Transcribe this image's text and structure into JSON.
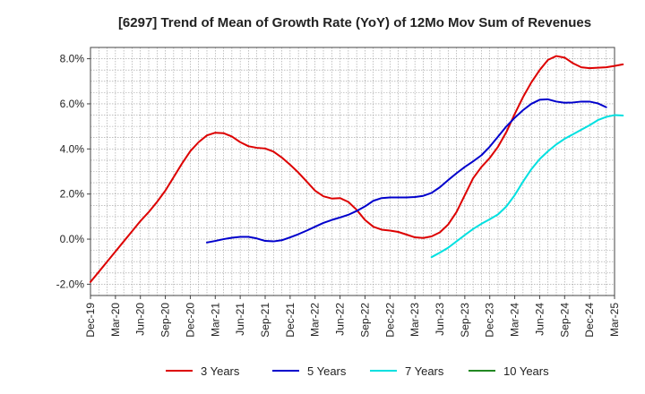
{
  "chart_data": {
    "type": "line",
    "title": "[6297]  Trend of Mean of Growth Rate (YoY) of 12Mo Mov Sum of Revenues",
    "xlabel": "",
    "ylabel": "",
    "ylim": [
      -2.5,
      8.5
    ],
    "y_ticks": [
      -2.0,
      0.0,
      2.0,
      4.0,
      6.0,
      8.0
    ],
    "y_tick_labels": [
      "-2.0%",
      "0.0%",
      "2.0%",
      "4.0%",
      "6.0%",
      "8.0%"
    ],
    "x_tick_labels": [
      "Dec-19",
      "Mar-20",
      "Jun-20",
      "Sep-20",
      "Dec-20",
      "Mar-21",
      "Jun-21",
      "Sep-21",
      "Dec-21",
      "Mar-22",
      "Jun-22",
      "Sep-22",
      "Dec-22",
      "Mar-23",
      "Jun-23",
      "Sep-23",
      "Dec-23",
      "Mar-24",
      "Jun-24",
      "Sep-24",
      "Dec-24",
      "Mar-25"
    ],
    "grid": true,
    "legend_position": "bottom",
    "series": [
      {
        "name": "3 Years",
        "color": "#dd0000",
        "start_month_index": 0,
        "values": [
          -1.9,
          -1.45,
          -1.0,
          -0.55,
          -0.1,
          0.35,
          0.8,
          1.2,
          1.65,
          2.15,
          2.75,
          3.35,
          3.9,
          4.3,
          4.6,
          4.72,
          4.7,
          4.55,
          4.3,
          4.12,
          4.05,
          4.02,
          3.88,
          3.62,
          3.3,
          2.95,
          2.55,
          2.15,
          1.9,
          1.8,
          1.82,
          1.65,
          1.3,
          0.85,
          0.55,
          0.42,
          0.38,
          0.32,
          0.2,
          0.08,
          0.05,
          0.12,
          0.3,
          0.65,
          1.2,
          1.95,
          2.7,
          3.2,
          3.6,
          4.1,
          4.75,
          5.55,
          6.3,
          6.95,
          7.5,
          7.95,
          8.12,
          8.05,
          7.8,
          7.62,
          7.58,
          7.6,
          7.62,
          7.68,
          7.75
        ]
      },
      {
        "name": "5 Years",
        "color": "#0000cc",
        "start_month_index": 14,
        "values": [
          -0.15,
          -0.08,
          0.0,
          0.06,
          0.1,
          0.1,
          0.03,
          -0.08,
          -0.1,
          -0.05,
          0.08,
          0.22,
          0.38,
          0.55,
          0.72,
          0.85,
          0.96,
          1.08,
          1.25,
          1.45,
          1.7,
          1.82,
          1.85,
          1.85,
          1.85,
          1.87,
          1.92,
          2.05,
          2.3,
          2.62,
          2.92,
          3.2,
          3.45,
          3.72,
          4.1,
          4.55,
          5.0,
          5.38,
          5.72,
          6.0,
          6.18,
          6.2,
          6.1,
          6.05,
          6.06,
          6.1,
          6.1,
          6.02,
          5.85
        ]
      },
      {
        "name": "7 Years",
        "color": "#00e0e0",
        "start_month_index": 41,
        "values": [
          -0.8,
          -0.6,
          -0.38,
          -0.1,
          0.18,
          0.45,
          0.68,
          0.88,
          1.1,
          1.45,
          1.95,
          2.55,
          3.1,
          3.55,
          3.9,
          4.2,
          4.45,
          4.65,
          4.85,
          5.05,
          5.28,
          5.42,
          5.5,
          5.48
        ]
      },
      {
        "name": "10 Years",
        "color": "#228822",
        "start_month_index": 0,
        "values": []
      }
    ]
  }
}
